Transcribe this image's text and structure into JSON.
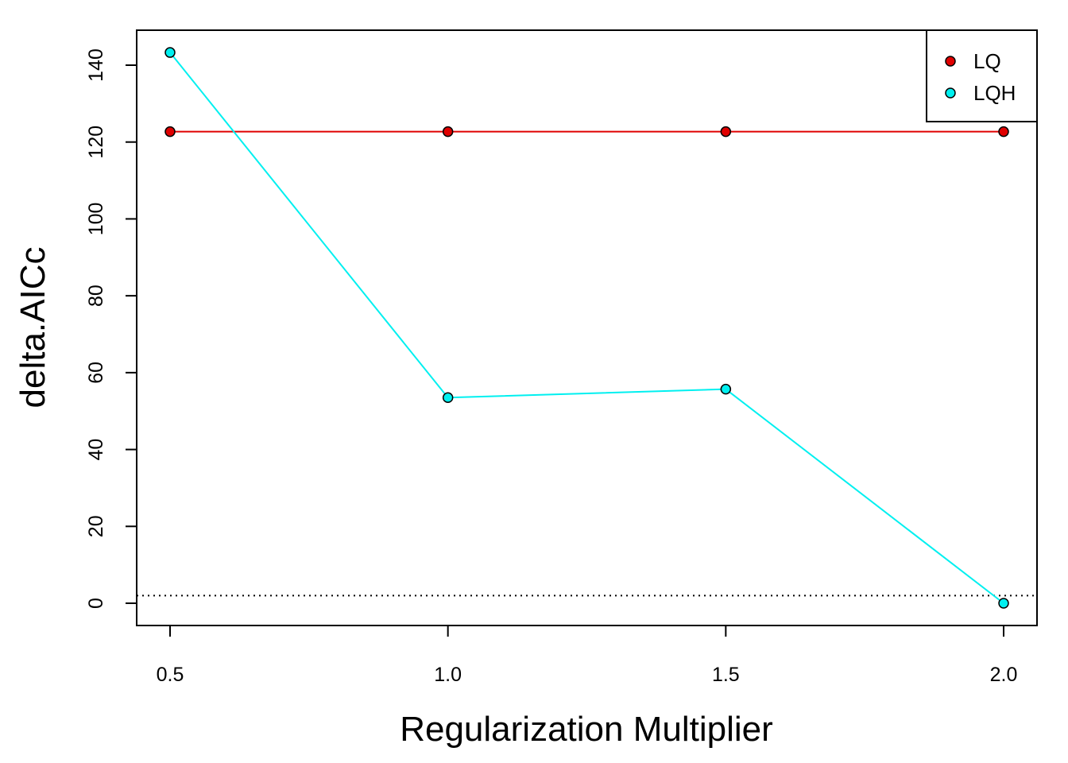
{
  "chart_data": {
    "type": "line",
    "xlabel": "Regularization Multiplier",
    "ylabel": "delta.AICc",
    "xlim": [
      0.5,
      2.0
    ],
    "ylim": [
      0,
      140
    ],
    "x_ticks": [
      "0.5",
      "1.0",
      "1.5",
      "2.0"
    ],
    "y_ticks": [
      "0",
      "20",
      "40",
      "60",
      "80",
      "100",
      "120",
      "140"
    ],
    "x": [
      0.5,
      1.0,
      1.5,
      2.0
    ],
    "series": [
      {
        "name": "LQ",
        "color": "#e00000",
        "values": [
          122.7,
          122.7,
          122.7,
          122.7
        ]
      },
      {
        "name": "LQH",
        "color": "#00f0f0",
        "values": [
          143.3,
          53.5,
          55.7,
          0.0
        ]
      }
    ],
    "reference_line": {
      "y": 2,
      "style": "dotted"
    },
    "legend": "top-right",
    "grid": false
  }
}
